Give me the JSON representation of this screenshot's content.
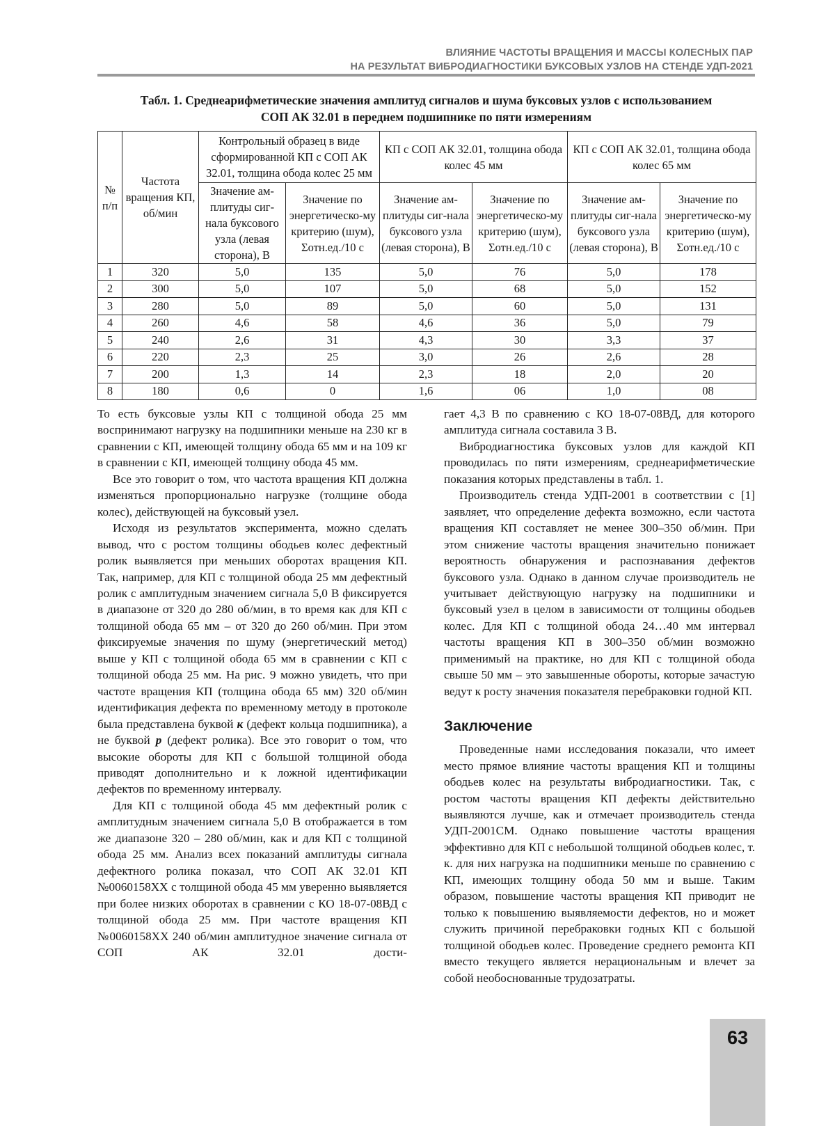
{
  "running_head": {
    "line1": "ВЛИЯНИЕ ЧАСТОТЫ ВРАЩЕНИЯ И МАССЫ КОЛЕСНЫХ ПАР",
    "line2": "НА РЕЗУЛЬТАТ ВИБРОДИАГНОСТИКИ БУКСОВЫХ УЗЛОВ НА СТЕНДЕ УДП-2021"
  },
  "table": {
    "caption_line1": "Табл. 1. Среднеарифметические значения амплитуд сигналов и шума буксовых узлов с использованием",
    "caption_line2": "СОП АК 32.01 в переднем подшипнике по пяти измерениям",
    "header": {
      "num": "№ п/п",
      "freq": "Частота вращения КП, об/мин",
      "groups": [
        "Контрольный образец в виде сформированной КП с СОП АК 32.01, толщина обода колес 25 мм",
        "КП с СОП АК 32.01, толщина обода колес 45 мм",
        "КП с СОП АК 32.01, толщина обода колес 65 мм"
      ],
      "sub_amp": "Значение ам-плитуды сиг-нала буксового узла (левая сторона), В",
      "sub_noise": "Значение по энергетическо-му критерию (шум), Σотн.ед./10 с"
    },
    "rows": [
      [
        "1",
        "320",
        "5,0",
        "135",
        "5,0",
        "76",
        "5,0",
        "178"
      ],
      [
        "2",
        "300",
        "5,0",
        "107",
        "5,0",
        "68",
        "5,0",
        "152"
      ],
      [
        "3",
        "280",
        "5,0",
        "89",
        "5,0",
        "60",
        "5,0",
        "131"
      ],
      [
        "4",
        "260",
        "4,6",
        "58",
        "4,6",
        "36",
        "5,0",
        "79"
      ],
      [
        "5",
        "240",
        "2,6",
        "31",
        "4,3",
        "30",
        "3,3",
        "37"
      ],
      [
        "6",
        "220",
        "2,3",
        "25",
        "3,0",
        "26",
        "2,6",
        "28"
      ],
      [
        "7",
        "200",
        "1,3",
        "14",
        "2,3",
        "18",
        "2,0",
        "20"
      ],
      [
        "8",
        "180",
        "0,6",
        "0",
        "1,6",
        "06",
        "1,0",
        "08"
      ]
    ]
  },
  "body": {
    "p1": "То есть буксовые узлы КП с толщиной обода 25 мм воспринимают нагрузку на подшипники меньше на 230 кг в сравнении с КП, имеющей толщину обода 65 мм и на 109 кг в сравнении с КП, имеющей толщину обода 45 мм.",
    "p2": "Все это говорит о том, что частота вращения КП должна изменяться пропорционально нагрузке (толщине обода колес), действующей на буксовый узел.",
    "p3a": "Исходя из результатов эксперимента, можно сделать вывод, что с ростом толщины ободьев колес дефектный ролик выявляется при меньших оборотах вращения КП. Так, например, для КП с толщиной обода 25 мм дефектный ролик с амплитудным значением сигнала 5,0 В фиксируется в диапазоне от 320 до 280 об/мин, в то время как для КП с толщиной обода 65 мм – от 320 до 260 об/мин. При этом фиксируемые значения по шуму (энергетический метод) выше у КП с толщиной обода 65 мм в сравнении с КП с толщиной обода 25 мм. На рис. 9 можно увидеть, что при частоте вращения КП (толщина обода 65 мм) 320 об/мин идентификация дефекта по временному методу в протоколе была представлена буквой ",
    "p3_k": "к",
    "p3b": " (дефект кольца подшипника), а не буквой ",
    "p3_p": "р",
    "p3c": " (дефект ролика). Все это говорит о том, что высокие обороты для КП с большой толщиной обода приводят дополнительно и к ложной идентификации дефектов по временному интервалу.",
    "p4a": "Для КП с толщиной обода 45 мм дефектный ролик с амплитудным значением сигнала 5,0 В отображается в том же диапазоне 320 – 280 об/мин, как и для КП с толщиной обода 25 мм. Анализ всех показаний амплитуды сигнала дефектного ролика показал, что СОП АК 32.01 КП №0060158ХХ с толщиной обода 45 мм уверенно выявляется при более низких оборотах в сравнении с КО 18-07-08ВД с толщиной обода 25 мм. При частоте вращения КП №0060158ХХ 240 об/мин амплитудное значение сигнала от СОП АК 32.01 дости-",
    "p4b": "гает 4,3 В по сравнению с КО 18-07-08ВД, для которого амплитуда сигнала составила 3 В.",
    "p5": "Вибродиагностика буксовых узлов для каждой КП проводилась по пяти измерениям, среднеарифметические показания которых представлены в табл. 1.",
    "p6": "Производитель стенда УДП-2001 в соответствии с [1] заявляет, что определение дефекта возможно, если частота вращения КП составляет не менее 300–350 об/мин. При этом снижение частоты вращения значительно понижает вероятность обнаружения и распознавания дефектов буксового узла. Однако в данном случае производитель не учитывает действующую нагрузку на подшипники и буксовый узел в целом в зависимости от толщины ободьев колес. Для КП с толщиной обода 24…40 мм интервал частоты вращения КП в 300–350 об/мин возможно применимый на практике, но для КП с толщиной обода свыше 50 мм – это завышенные обороты, которые зачастую ведут к росту значения показателя перебраковки годной КП.",
    "conclusion_title": "Заключение",
    "p7": "Проведенные нами исследования показали, что имеет место прямое влияние частоты вращения КП и толщины ободьев колес на результаты вибродиагностики. Так, с ростом частоты вращения КП дефекты действительно выявляются лучше, как и отмечает производитель стенда УДП-2001СМ. Однако повышение частоты вращения эффективно для КП с небольшой толщиной ободьев колес, т. к. для них нагрузка на подшипники меньше по сравнению с КП, имеющих толщину обода 50 мм и выше. Таким образом, повышение частоты вращения КП приводит не только к повышению выявляемости дефектов, но и может служить причиной перебраковки годных КП с большой толщиной ободьев колес. Проведение среднего ремонта КП вместо текущего является нерациональным и влечет за собой необоснованные трудозатраты."
  },
  "page_number": "63",
  "colors": {
    "running_head": "#707070",
    "rule": "#9a9a9a",
    "page_box": "#c8c8c8"
  }
}
